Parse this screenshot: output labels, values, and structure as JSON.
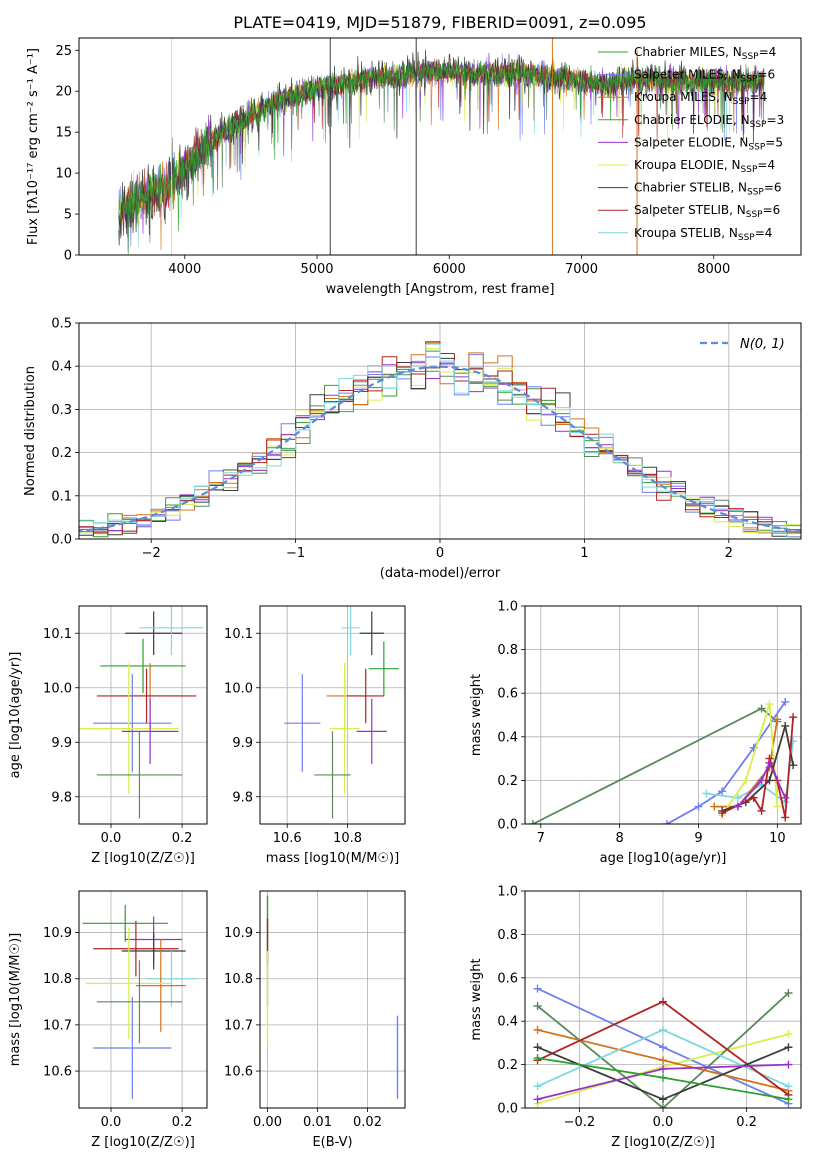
{
  "title": "PLATE=0419, MJD=51879, FIBERID=0091, z=0.095",
  "colors": {
    "c_chab_miles": "#2ca02c",
    "c_salp_miles": "#6f7ff0",
    "c_krou_miles": "#d4731a",
    "c_chab_elodie": "#5a8a5a",
    "c_salp_elodie": "#9932cc",
    "c_krou_elodie": "#d7ee4f",
    "c_chab_stelib": "#3c3c3c",
    "c_salp_stelib": "#b22222",
    "c_krou_stelib": "#7fd7e1",
    "gauss": "#5b8bdc"
  },
  "chart_data": [
    {
      "id": "spectrum",
      "type": "line",
      "xlabel": "wavelength [Angstrom, rest frame]",
      "ylabel": "Flux [fλ10⁻¹⁷ erg cm⁻² s⁻¹ A⁻¹]",
      "xlim": [
        3200,
        8660
      ],
      "ylim": [
        0,
        26.5
      ],
      "xticks": [
        4000,
        5000,
        6000,
        7000,
        8000
      ],
      "yticks": [
        0,
        5,
        10,
        15,
        20,
        25
      ],
      "wave_range": [
        3500,
        8380
      ],
      "spectrum_x": [
        3500,
        3600,
        3700,
        3800,
        3900,
        4000,
        4100,
        4200,
        4300,
        4400,
        4500,
        4600,
        4800,
        5000,
        5200,
        5400,
        5600,
        5800,
        6000,
        6200,
        6400,
        6600,
        6800,
        7000,
        7200,
        7400,
        7600,
        7800,
        8000,
        8200,
        8380
      ],
      "spectrum_y": [
        5.0,
        6.2,
        7.3,
        8.0,
        8.6,
        10.5,
        12.5,
        13.8,
        15.2,
        16.2,
        17.1,
        18.0,
        19.3,
        20.4,
        21.0,
        21.6,
        22.0,
        22.4,
        22.5,
        22.0,
        22.3,
        22.1,
        21.6,
        21.2,
        20.8,
        21.6,
        21.2,
        21.0,
        21.3,
        21.0,
        21.4
      ],
      "legend": [
        {
          "label": "Chabrier MILES, N",
          "sub": "SSP",
          "suffix": "=4",
          "color": "c_chab_miles"
        },
        {
          "label": "Salpeter MILES, N",
          "sub": "SSP",
          "suffix": "=6",
          "color": "c_salp_miles"
        },
        {
          "label": "Kroupa MILES, N",
          "sub": "SSP",
          "suffix": "=4",
          "color": "c_krou_miles"
        },
        {
          "label": "Chabrier ELODIE, N",
          "sub": "SSP",
          "suffix": "=3",
          "color": "c_chab_elodie"
        },
        {
          "label": "Salpeter ELODIE, N",
          "sub": "SSP",
          "suffix": "=5",
          "color": "c_salp_elodie"
        },
        {
          "label": "Kroupa ELODIE, N",
          "sub": "SSP",
          "suffix": "=4",
          "color": "c_krou_elodie"
        },
        {
          "label": "Chabrier STELIB, N",
          "sub": "SSP",
          "suffix": "=6",
          "color": "c_chab_stelib"
        },
        {
          "label": "Salpeter STELIB, N",
          "sub": "SSP",
          "suffix": "=6",
          "color": "c_salp_stelib"
        },
        {
          "label": "Kroupa STELIB, N",
          "sub": "SSP",
          "suffix": "=4",
          "color": "c_krou_stelib"
        }
      ],
      "spikes": [
        {
          "x": 3900,
          "color": "c_krou_elodie"
        },
        {
          "x": 5100,
          "color": "c_chab_stelib"
        },
        {
          "x": 5750,
          "color": "c_chab_stelib"
        },
        {
          "x": 6780,
          "color": "c_krou_miles"
        },
        {
          "x": 7420,
          "color": "c_krou_miles"
        }
      ]
    },
    {
      "id": "residuals",
      "type": "histogram",
      "xlabel": "(data-model)/error",
      "ylabel": "Normed distribution",
      "xlim": [
        -2.5,
        2.5
      ],
      "ylim": [
        0,
        0.5
      ],
      "xticks": [
        -2,
        -1,
        0,
        1,
        2
      ],
      "yticks": [
        0.0,
        0.1,
        0.2,
        0.3,
        0.4,
        0.5
      ],
      "bin_width": 0.1,
      "legend_label": "N(0, 1)",
      "series_colors": [
        "c_chab_miles",
        "c_salp_miles",
        "c_krou_miles",
        "c_chab_elodie",
        "c_salp_elodie",
        "c_krou_elodie",
        "c_chab_stelib",
        "c_salp_stelib",
        "c_krou_stelib"
      ]
    },
    {
      "id": "age_Z",
      "type": "errorbar",
      "xlabel": "Z [log10(Z/Z☉)]",
      "ylabel": "age  [log10(age/yr)]",
      "xlim": [
        -0.09,
        0.27
      ],
      "ylim": [
        9.75,
        10.15
      ],
      "xticks": [
        0.0,
        0.2
      ],
      "yticks": [
        9.8,
        9.9,
        10.0,
        10.1
      ],
      "points": [
        {
          "x": 0.12,
          "y": 10.1,
          "xerr": 0.08,
          "yerr": 0.04,
          "color": "c_chab_stelib"
        },
        {
          "x": 0.17,
          "y": 10.11,
          "xerr": 0.09,
          "yerr": 0.05,
          "color": "c_krou_stelib"
        },
        {
          "x": 0.09,
          "y": 10.04,
          "xerr": 0.12,
          "yerr": 0.05,
          "color": "c_chab_miles"
        },
        {
          "x": 0.11,
          "y": 9.985,
          "xerr": 0.09,
          "yerr": 0.06,
          "color": "c_krou_miles"
        },
        {
          "x": 0.1,
          "y": 9.985,
          "xerr": 0.14,
          "yerr": 0.05,
          "color": "c_salp_stelib"
        },
        {
          "x": 0.06,
          "y": 9.935,
          "xerr": 0.11,
          "yerr": 0.09,
          "color": "c_salp_miles"
        },
        {
          "x": 0.05,
          "y": 9.925,
          "xerr": 0.14,
          "yerr": 0.12,
          "color": "c_krou_elodie"
        },
        {
          "x": 0.11,
          "y": 9.92,
          "xerr": 0.08,
          "yerr": 0.06,
          "color": "c_salp_elodie"
        },
        {
          "x": 0.08,
          "y": 9.84,
          "xerr": 0.12,
          "yerr": 0.08,
          "color": "c_chab_elodie"
        }
      ]
    },
    {
      "id": "age_mass",
      "type": "errorbar",
      "xlabel": "mass [log10(M/M☉)]",
      "ylabel": "",
      "xlim": [
        10.51,
        10.99
      ],
      "ylim": [
        9.75,
        10.15
      ],
      "xticks": [
        10.6,
        10.8
      ],
      "yticks": [
        9.8,
        9.9,
        10.0,
        10.1
      ],
      "points": [
        {
          "x": 10.88,
          "y": 10.1,
          "xerr": 0.04,
          "yerr": 0.04,
          "color": "c_chab_stelib"
        },
        {
          "x": 10.81,
          "y": 10.11,
          "xerr": 0.03,
          "yerr": 0.05,
          "color": "c_krou_stelib"
        },
        {
          "x": 10.92,
          "y": 10.035,
          "xerr": 0.05,
          "yerr": 0.05,
          "color": "c_chab_miles"
        },
        {
          "x": 10.79,
          "y": 9.985,
          "xerr": 0.06,
          "yerr": 0.06,
          "color": "c_krou_miles"
        },
        {
          "x": 10.86,
          "y": 9.985,
          "xerr": 0.06,
          "yerr": 0.05,
          "color": "c_salp_stelib"
        },
        {
          "x": 10.65,
          "y": 9.935,
          "xerr": 0.06,
          "yerr": 0.09,
          "color": "c_salp_miles"
        },
        {
          "x": 10.79,
          "y": 9.925,
          "xerr": 0.05,
          "yerr": 0.12,
          "color": "c_krou_elodie"
        },
        {
          "x": 10.88,
          "y": 9.92,
          "xerr": 0.05,
          "yerr": 0.06,
          "color": "c_salp_elodie"
        },
        {
          "x": 10.75,
          "y": 9.84,
          "xerr": 0.06,
          "yerr": 0.08,
          "color": "c_chab_elodie"
        }
      ]
    },
    {
      "id": "mw_age",
      "type": "line",
      "xlabel": "age  [log10(age/yr)]",
      "ylabel": "mass weight",
      "xlim": [
        6.8,
        10.3
      ],
      "ylim": [
        0,
        1
      ],
      "xticks": [
        7,
        8,
        9,
        10
      ],
      "yticks": [
        0.0,
        0.2,
        0.4,
        0.6,
        0.8,
        1.0
      ],
      "series": [
        {
          "color": "c_chab_elodie",
          "x": [
            6.9,
            9.8,
            10.0
          ],
          "y": [
            0.0,
            0.53,
            0.47
          ]
        },
        {
          "color": "c_salp_miles",
          "x": [
            8.6,
            9.0,
            9.3,
            9.7,
            10.1
          ],
          "y": [
            0.0,
            0.08,
            0.15,
            0.35,
            0.56
          ]
        },
        {
          "color": "c_krou_stelib",
          "x": [
            9.1,
            9.5,
            9.8,
            10.1,
            10.2
          ],
          "y": [
            0.14,
            0.12,
            0.18,
            0.1,
            0.38
          ]
        },
        {
          "color": "c_krou_miles",
          "x": [
            9.2,
            9.5,
            9.9,
            10.0
          ],
          "y": [
            0.08,
            0.08,
            0.26,
            0.48
          ]
        },
        {
          "color": "c_krou_elodie",
          "x": [
            9.3,
            9.6,
            9.9,
            10.0
          ],
          "y": [
            0.04,
            0.2,
            0.55,
            0.08
          ]
        },
        {
          "color": "c_chab_stelib",
          "x": [
            9.3,
            9.6,
            9.9,
            10.1,
            10.2
          ],
          "y": [
            0.06,
            0.1,
            0.2,
            0.45,
            0.27
          ]
        },
        {
          "color": "c_salp_stelib",
          "x": [
            9.3,
            9.7,
            9.8,
            9.9,
            10.0,
            10.1,
            10.2
          ],
          "y": [
            0.05,
            0.12,
            0.06,
            0.3,
            0.2,
            0.03,
            0.49
          ]
        },
        {
          "color": "c_salp_elodie",
          "x": [
            9.5,
            9.8,
            9.9,
            10.1
          ],
          "y": [
            0.08,
            0.2,
            0.28,
            0.12
          ]
        }
      ]
    },
    {
      "id": "mass_Z",
      "type": "errorbar",
      "xlabel": "Z [log10(Z/Z☉)]",
      "ylabel": "mass [log10(M/M☉)]",
      "xlim": [
        -0.09,
        0.27
      ],
      "ylim": [
        10.52,
        10.99
      ],
      "xticks": [
        0.0,
        0.2
      ],
      "yticks": [
        10.6,
        10.7,
        10.8,
        10.9
      ],
      "points": [
        {
          "x": 0.04,
          "y": 10.92,
          "xerr": 0.12,
          "yerr": 0.04,
          "color": "c_chab_miles"
        },
        {
          "x": 0.12,
          "y": 10.885,
          "xerr": 0.08,
          "yerr": 0.05,
          "color": "c_salp_elodie"
        },
        {
          "x": 0.07,
          "y": 10.865,
          "xerr": 0.12,
          "yerr": 0.06,
          "color": "c_salp_stelib"
        },
        {
          "x": 0.12,
          "y": 10.86,
          "xerr": 0.09,
          "yerr": 0.04,
          "color": "c_chab_stelib"
        },
        {
          "x": 0.17,
          "y": 10.8,
          "xerr": 0.07,
          "yerr": 0.06,
          "color": "c_krou_stelib"
        },
        {
          "x": 0.14,
          "y": 10.785,
          "xerr": 0.07,
          "yerr": 0.1,
          "color": "c_krou_miles"
        },
        {
          "x": 0.05,
          "y": 10.79,
          "xerr": 0.12,
          "yerr": 0.12,
          "color": "c_krou_elodie"
        },
        {
          "x": 0.08,
          "y": 10.75,
          "xerr": 0.12,
          "yerr": 0.09,
          "color": "c_chab_elodie"
        },
        {
          "x": 0.06,
          "y": 10.65,
          "xerr": 0.11,
          "yerr": 0.11,
          "color": "c_salp_miles"
        }
      ]
    },
    {
      "id": "mass_ebv",
      "type": "errorbar",
      "xlabel": "E(B-V)",
      "ylabel": "",
      "xlim": [
        -0.0015,
        0.0275
      ],
      "ylim": [
        10.52,
        10.99
      ],
      "xticks": [
        0.0,
        0.01,
        0.02
      ],
      "xticklabels": [
        "0.00",
        "0.01",
        "0.02"
      ],
      "yticks": [
        10.6,
        10.7,
        10.8,
        10.9
      ],
      "points": [
        {
          "x": 0.0,
          "y": 10.92,
          "xerr": 0,
          "yerr": 0.06,
          "color": "c_chab_miles"
        },
        {
          "x": 0.0,
          "y": 10.88,
          "xerr": 0,
          "yerr": 0.05,
          "color": "c_salp_stelib"
        },
        {
          "x": 0.0,
          "y": 10.8,
          "xerr": 0,
          "yerr": 0.06,
          "color": "c_chab_elodie"
        },
        {
          "x": 0.0,
          "y": 10.76,
          "xerr": 0,
          "yerr": 0.1,
          "color": "c_krou_elodie"
        },
        {
          "x": 0.026,
          "y": 10.63,
          "xerr": 0,
          "yerr": 0.09,
          "color": "c_salp_miles"
        }
      ]
    },
    {
      "id": "mw_Z",
      "type": "line",
      "xlabel": "Z [log10(Z/Z☉)]",
      "ylabel": "mass weight",
      "xlim": [
        -0.33,
        0.33
      ],
      "ylim": [
        0,
        1
      ],
      "xticks": [
        -0.2,
        0.0,
        0.2
      ],
      "yticks": [
        0.0,
        0.2,
        0.4,
        0.6,
        0.8,
        1.0
      ],
      "series": [
        {
          "color": "c_salp_miles",
          "x": [
            -0.3,
            0.0,
            0.3
          ],
          "y": [
            0.55,
            0.28,
            0.02
          ]
        },
        {
          "color": "c_krou_elodie",
          "x": [
            -0.3,
            0.0,
            0.3
          ],
          "y": [
            0.02,
            0.19,
            0.34
          ]
        },
        {
          "color": "c_chab_elodie",
          "x": [
            -0.3,
            0.0,
            0.3
          ],
          "y": [
            0.47,
            0.0,
            0.53
          ]
        },
        {
          "color": "c_krou_miles",
          "x": [
            -0.3,
            0.0,
            0.3
          ],
          "y": [
            0.36,
            0.22,
            0.08
          ]
        },
        {
          "color": "c_krou_stelib",
          "x": [
            -0.3,
            0.0,
            0.3
          ],
          "y": [
            0.1,
            0.36,
            0.1
          ]
        },
        {
          "color": "c_salp_stelib",
          "x": [
            -0.3,
            0.0,
            0.3
          ],
          "y": [
            0.22,
            0.49,
            0.06
          ]
        },
        {
          "color": "c_chab_stelib",
          "x": [
            -0.3,
            0.0,
            0.3
          ],
          "y": [
            0.28,
            0.04,
            0.28
          ]
        },
        {
          "color": "c_salp_elodie",
          "x": [
            -0.3,
            0.0,
            0.3
          ],
          "y": [
            0.04,
            0.18,
            0.2
          ]
        },
        {
          "color": "c_chab_miles",
          "x": [
            -0.3,
            0.0,
            0.3
          ],
          "y": [
            0.23,
            0.14,
            0.04
          ]
        }
      ]
    }
  ]
}
